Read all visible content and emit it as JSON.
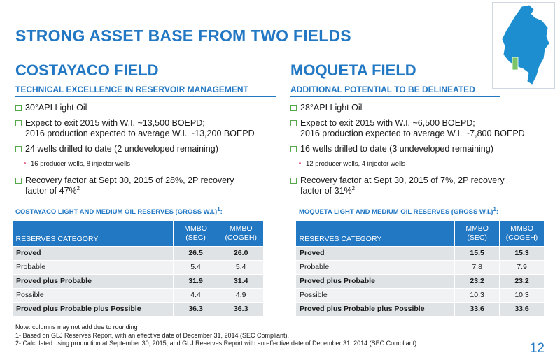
{
  "title": "STRONG ASSET BASE FROM TWO FIELDS",
  "map": {
    "icon": "colombia-map-icon",
    "land_color": "#1d8fd0",
    "highlight_color": "#7bc46a"
  },
  "left": {
    "title": "COSTAYACO FIELD",
    "subtitle": "TECHNICAL EXCELLENCE IN RESERVOIR MANAGEMENT",
    "bullets": {
      "b1": "30°API Light Oil",
      "b2_line1": "Expect to exit 2015 with W.I. ~13,500 BOEPD;",
      "b2_line2": "2016 production expected to average W.I. ~13,200 BOEPD",
      "b3": "24 wells drilled to date (2 undeveloped remaining)",
      "b3_sub": "16 producer wells, 8 injector wells",
      "b4_line1": "Recovery factor at Sept 30, 2015 of 28%, 2P recovery",
      "b4_line2": "factor of 47%",
      "b4_sup": "2"
    },
    "table_caption": "COSTAYACO LIGHT AND MEDIUM OIL RESERVES (GROSS W.I.)",
    "table_caption_sup": "1",
    "table_caption_suffix": ":",
    "headers": {
      "category": "RESERVES CATEGORY",
      "sec_line1": "MMBO",
      "sec_line2": "(SEC)",
      "cogeh_line1": "MMBO",
      "cogeh_line2": "(COGEH)"
    },
    "rows": [
      {
        "category": "Proved",
        "sec": "26.5",
        "cogeh": "26.0"
      },
      {
        "category": "Probable",
        "sec": "5.4",
        "cogeh": "5.4"
      },
      {
        "category": "Proved plus Probable",
        "sec": "31.9",
        "cogeh": "31.4"
      },
      {
        "category": "Possible",
        "sec": "4.4",
        "cogeh": "4.9"
      },
      {
        "category": "Proved plus Probable plus Possible",
        "sec": "36.3",
        "cogeh": "36.3"
      }
    ]
  },
  "right": {
    "title": "MOQUETA FIELD",
    "subtitle": "ADDITIONAL POTENTIAL TO BE DELINEATED",
    "bullets": {
      "b1": "28°API Light Oil",
      "b2_line1": "Expect to exit 2015 with W.I. ~6,500 BOEPD;",
      "b2_line2": "2016 production expected to average W.I. ~7,800 BOEPD",
      "b3": "16 wells drilled to date (3 undeveloped remaining)",
      "b3_sub": "12 producer wells, 4 injector wells",
      "b4_line1": "Recovery factor at Sept 30, 2015 of  7%, 2P recovery",
      "b4_line2": "factor of 31%",
      "b4_sup": "2"
    },
    "table_caption": "MOQUETA LIGHT AND MEDIUM OIL RESERVES (GROSS W.I.)",
    "table_caption_sup": "1",
    "table_caption_suffix": ":",
    "headers": {
      "category": "RESERVES CATEGORY",
      "sec_line1": "MMBO",
      "sec_line2": "(SEC)",
      "cogeh_line1": "MMBO",
      "cogeh_line2": "(COGEH)"
    },
    "rows": [
      {
        "category": "Proved",
        "sec": "15.5",
        "cogeh": "15.3"
      },
      {
        "category": "Probable",
        "sec": "7.8",
        "cogeh": "7.9"
      },
      {
        "category": "Proved plus Probable",
        "sec": "23.2",
        "cogeh": "23.2"
      },
      {
        "category": "Possible",
        "sec": "10.3",
        "cogeh": "10.3"
      },
      {
        "category": "Proved plus Probable plus Possible",
        "sec": "33.6",
        "cogeh": "33.6"
      }
    ]
  },
  "footnotes": {
    "note": "Note: columns may not add due to rounding",
    "f1": "1- Based on GLJ Reserves Report, with an effective date of December 31, 2014 (SEC Compliant).",
    "f2": "2- Calculated using production at September 30, 2015, and GLJ Reserves Report with an effective date of December 31, 2014 (SEC Compliant)."
  },
  "page_number": "12",
  "colors": {
    "accent": "#2378c4",
    "bullet": "#54a84a",
    "row_dark": "#dfe3e6",
    "row_light": "#f1f2f3"
  }
}
